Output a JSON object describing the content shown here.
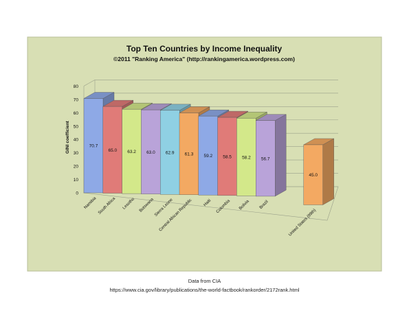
{
  "chart_data": {
    "type": "bar",
    "title": "Top Ten Countries by Income Inequality",
    "subtitle": "©2011 \"Ranking America\" (http://rankingamerica.wordpress.com)",
    "xlabel": "",
    "ylabel": "GINI coefficient",
    "ylim": [
      0,
      80
    ],
    "yticks": [
      0,
      10,
      20,
      30,
      40,
      50,
      60,
      70,
      80
    ],
    "grid": true,
    "legend": "none",
    "categories": [
      "Namibia",
      "South Africa",
      "Lesotho",
      "Botswana",
      "Sierra Leone",
      "Central African Republic",
      "Haiti",
      "Colombia",
      "Bolivia",
      "Brazil",
      "United States (99th)"
    ],
    "values": [
      70.7,
      65.0,
      63.2,
      63.0,
      62.9,
      61.3,
      59.2,
      58.5,
      58.2,
      56.7,
      45.0
    ],
    "value_labels": [
      "70.7",
      "65.0",
      "63.2",
      "63.0",
      "62.9",
      "61.3",
      "59.2",
      "58.5",
      "58.2",
      "56.7",
      "45.0"
    ],
    "colors": [
      "#8ea9e6",
      "#e07b78",
      "#d3e88a",
      "#b9a3d9",
      "#8fd0e3",
      "#f3a962",
      "#8ea9e6",
      "#e07b78",
      "#d3e88a",
      "#b9a3d9",
      "#f3a962"
    ]
  },
  "footer": {
    "source": "Data from CIA",
    "url": "https://www.cia.gov/library/publications/the-world-factbook/rankorder/2172rank.html"
  },
  "style": {
    "background": "#d8dfb4",
    "frame": "#b8bf98",
    "grid": "#9aa08a"
  }
}
